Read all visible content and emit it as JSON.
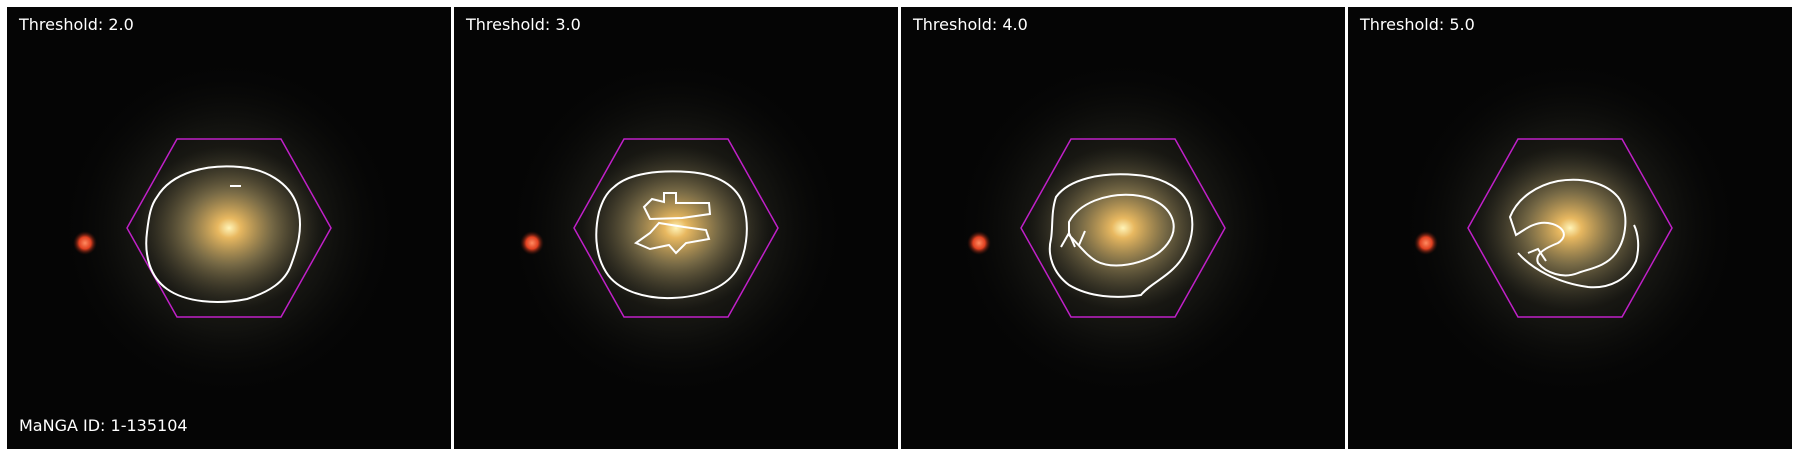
{
  "panels": [
    {
      "threshold_label": "Threshold: 2.0"
    },
    {
      "threshold_label": "Threshold: 3.0"
    },
    {
      "threshold_label": "Threshold: 4.0"
    },
    {
      "threshold_label": "Threshold: 5.0"
    }
  ],
  "manga_id_label": "MaNGA ID: 1-135104",
  "colors": {
    "background": "#050505",
    "hexagon": "#c020c8",
    "contour": "#ffffff",
    "galaxy_core": "#fff2b0",
    "star": "#ff5530"
  }
}
